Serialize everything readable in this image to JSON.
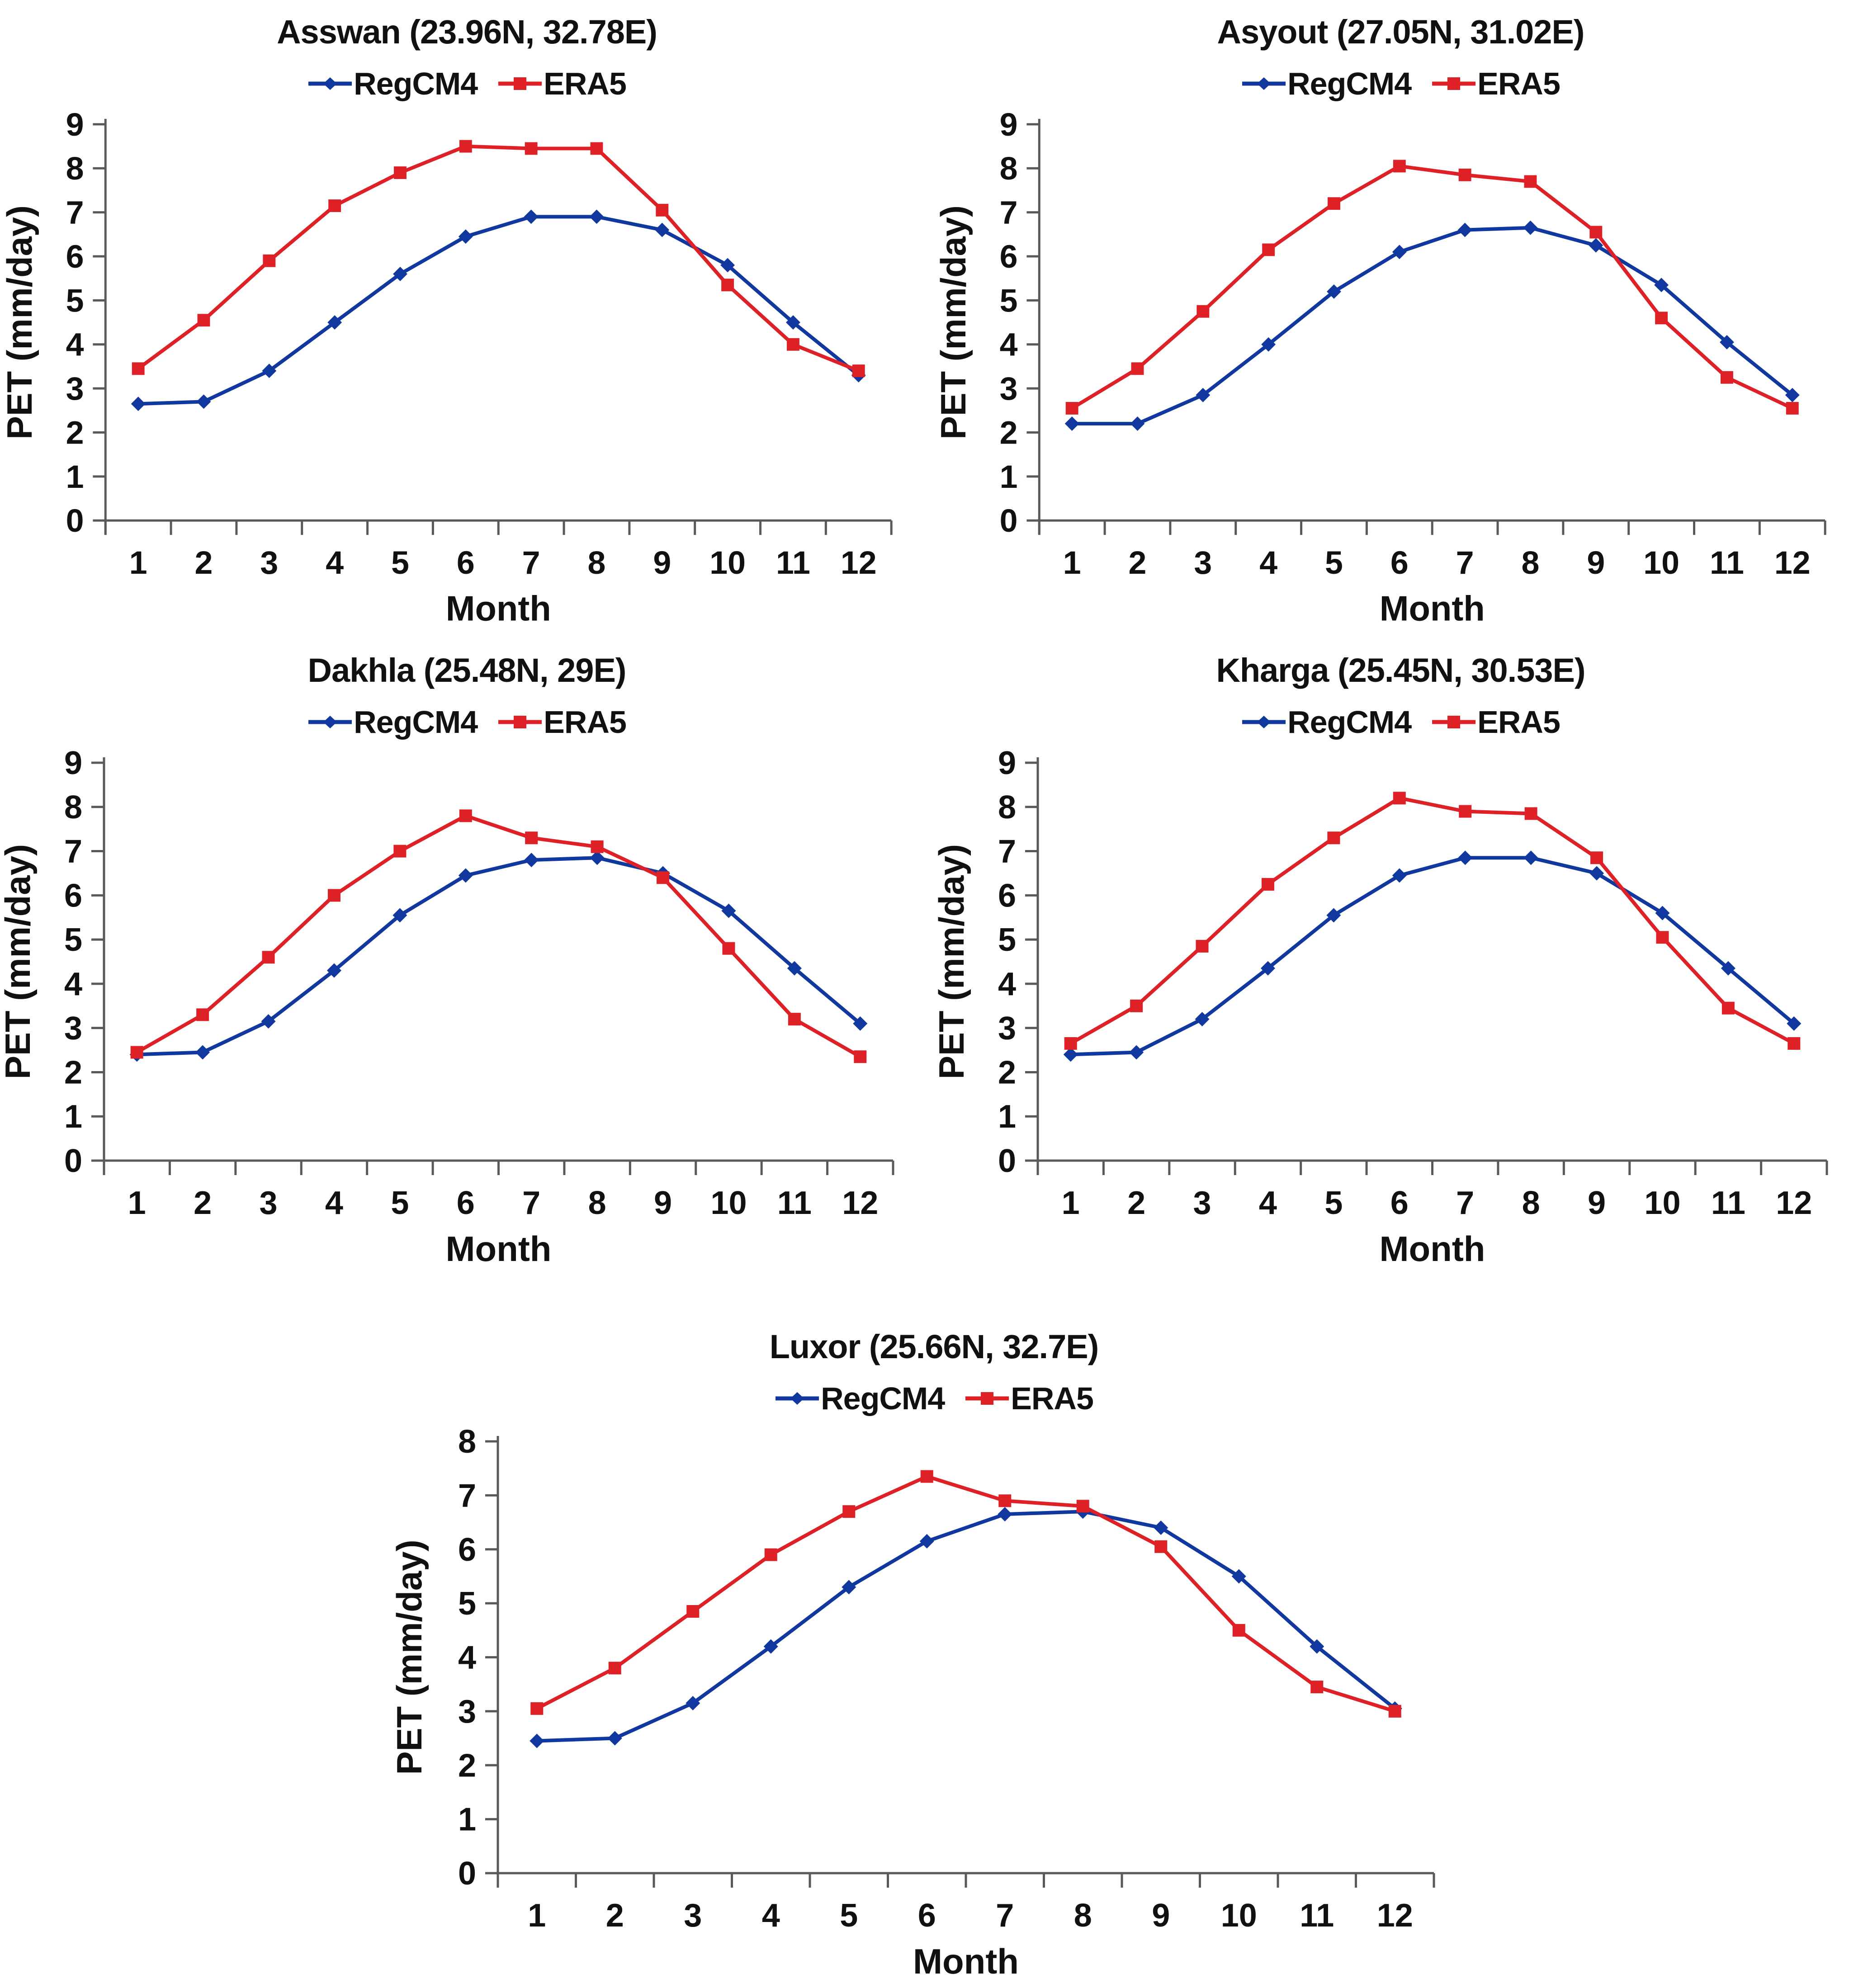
{
  "page": {
    "background": "#ffffff"
  },
  "colors": {
    "regcm4": "#10389E",
    "era5": "#DD2127",
    "axis": "#595959",
    "text": "#111111"
  },
  "chart_data": [
    {
      "type": "line",
      "title": "Asswan (23.96N, 32.78E)",
      "xlabel": "Month",
      "ylabel": "PET (mm/day)",
      "x": [
        1,
        2,
        3,
        4,
        5,
        6,
        7,
        8,
        9,
        10,
        11,
        12
      ],
      "ylim": [
        0,
        9
      ],
      "yticks": [
        0,
        1,
        2,
        3,
        4,
        5,
        6,
        7,
        8,
        9
      ],
      "grid": false,
      "legend_position": "top",
      "series": [
        {
          "name": "RegCM4",
          "color": "#10389E",
          "marker": "diamond",
          "values": [
            2.65,
            2.7,
            3.4,
            4.5,
            5.6,
            6.45,
            6.9,
            6.9,
            6.6,
            5.8,
            4.5,
            3.3
          ]
        },
        {
          "name": "ERA5",
          "color": "#DD2127",
          "marker": "square",
          "values": [
            3.45,
            4.55,
            5.9,
            7.15,
            7.9,
            8.5,
            8.45,
            8.45,
            7.05,
            5.35,
            4.0,
            3.4
          ]
        }
      ]
    },
    {
      "type": "line",
      "title": "Asyout (27.05N, 31.02E)",
      "xlabel": "Month",
      "ylabel": "PET (mm/day)",
      "x": [
        1,
        2,
        3,
        4,
        5,
        6,
        7,
        8,
        9,
        10,
        11,
        12
      ],
      "ylim": [
        0,
        9
      ],
      "yticks": [
        0,
        1,
        2,
        3,
        4,
        5,
        6,
        7,
        8,
        9
      ],
      "grid": false,
      "legend_position": "top",
      "series": [
        {
          "name": "RegCM4",
          "color": "#10389E",
          "marker": "diamond",
          "values": [
            2.2,
            2.2,
            2.85,
            4.0,
            5.2,
            6.1,
            6.6,
            6.65,
            6.25,
            5.35,
            4.05,
            2.85
          ]
        },
        {
          "name": "ERA5",
          "color": "#DD2127",
          "marker": "square",
          "values": [
            2.55,
            3.45,
            4.75,
            6.15,
            7.2,
            8.05,
            7.85,
            7.7,
            6.55,
            4.6,
            3.25,
            2.55
          ]
        }
      ]
    },
    {
      "type": "line",
      "title": "Dakhla (25.48N, 29E)",
      "xlabel": "Month",
      "ylabel": "PET (mm/day)",
      "x": [
        1,
        2,
        3,
        4,
        5,
        6,
        7,
        8,
        9,
        10,
        11,
        12
      ],
      "ylim": [
        0,
        9
      ],
      "yticks": [
        0,
        1,
        2,
        3,
        4,
        5,
        6,
        7,
        8,
        9
      ],
      "grid": false,
      "legend_position": "top",
      "series": [
        {
          "name": "RegCM4",
          "color": "#10389E",
          "marker": "diamond",
          "values": [
            2.4,
            2.45,
            3.15,
            4.3,
            5.55,
            6.45,
            6.8,
            6.85,
            6.5,
            5.65,
            4.35,
            3.1
          ]
        },
        {
          "name": "ERA5",
          "color": "#DD2127",
          "marker": "square",
          "values": [
            2.45,
            3.3,
            4.6,
            6.0,
            7.0,
            7.8,
            7.3,
            7.1,
            6.4,
            4.8,
            3.2,
            2.35
          ]
        }
      ]
    },
    {
      "type": "line",
      "title": "Kharga (25.45N, 30.53E)",
      "xlabel": "Month",
      "ylabel": "PET (mm/day)",
      "x": [
        1,
        2,
        3,
        4,
        5,
        6,
        7,
        8,
        9,
        10,
        11,
        12
      ],
      "ylim": [
        0,
        9
      ],
      "yticks": [
        0,
        1,
        2,
        3,
        4,
        5,
        6,
        7,
        8,
        9
      ],
      "grid": false,
      "legend_position": "top",
      "series": [
        {
          "name": "RegCM4",
          "color": "#10389E",
          "marker": "diamond",
          "values": [
            2.4,
            2.45,
            3.2,
            4.35,
            5.55,
            6.45,
            6.85,
            6.85,
            6.5,
            5.6,
            4.35,
            3.1
          ]
        },
        {
          "name": "ERA5",
          "color": "#DD2127",
          "marker": "square",
          "values": [
            2.65,
            3.5,
            4.85,
            6.25,
            7.3,
            8.2,
            7.9,
            7.85,
            6.85,
            5.05,
            3.45,
            2.65
          ]
        }
      ]
    },
    {
      "type": "line",
      "title": "Luxor (25.66N, 32.7E)",
      "xlabel": "Month",
      "ylabel": "PET (mm/day)",
      "x": [
        1,
        2,
        3,
        4,
        5,
        6,
        7,
        8,
        9,
        10,
        11,
        12
      ],
      "ylim": [
        0,
        8
      ],
      "yticks": [
        0,
        1,
        2,
        3,
        4,
        5,
        6,
        7,
        8
      ],
      "grid": false,
      "legend_position": "top",
      "series": [
        {
          "name": "RegCM4",
          "color": "#10389E",
          "marker": "diamond",
          "values": [
            2.45,
            2.5,
            3.15,
            4.2,
            5.3,
            6.15,
            6.65,
            6.7,
            6.4,
            5.5,
            4.2,
            3.05
          ]
        },
        {
          "name": "ERA5",
          "color": "#DD2127",
          "marker": "square",
          "values": [
            3.05,
            3.8,
            4.85,
            5.9,
            6.7,
            7.35,
            6.9,
            6.8,
            6.05,
            4.5,
            3.45,
            3.0
          ]
        }
      ]
    }
  ]
}
